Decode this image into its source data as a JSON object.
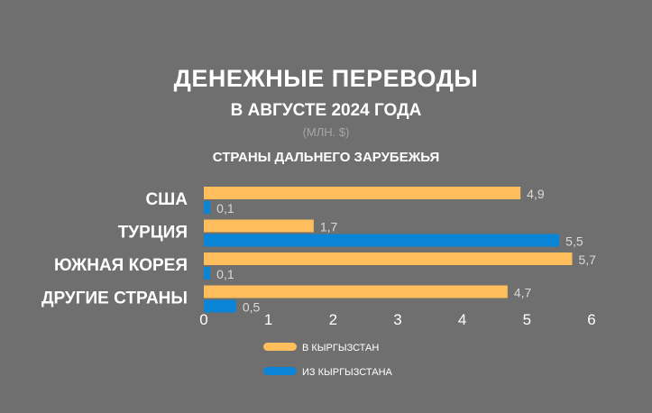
{
  "header": {
    "title": "ДЕНЕЖНЫЕ ПЕРЕВОДЫ",
    "subtitle": "В АВГУСТЕ 2024 ГОДА",
    "unit": "(МЛН. $)",
    "group": "СТРАНЫ ДАЛЬНЕГО ЗАРУБЕЖЬЯ"
  },
  "chart_data": {
    "type": "bar",
    "orientation": "horizontal",
    "categories": [
      "США",
      "ТУРЦИЯ",
      "ЮЖНАЯ КОРЕЯ",
      "ДРУГИЕ СТРАНЫ"
    ],
    "series": [
      {
        "name": "В КЫРГЫЗСТАН",
        "color": "#ffbe5c",
        "values": [
          4.9,
          1.7,
          5.7,
          4.7
        ],
        "labels": [
          "4,9",
          "1,7",
          "5,7",
          "4,7"
        ]
      },
      {
        "name": "ИЗ КЫРГЫЗСТАНА",
        "color": "#0a84d6",
        "values": [
          0.1,
          5.5,
          0.1,
          0.5
        ],
        "labels": [
          "0,1",
          "5,5",
          "0,1",
          "0,5"
        ]
      }
    ],
    "xlim": [
      0,
      6
    ],
    "xticks": [
      0,
      1,
      2,
      3,
      4,
      5,
      6
    ],
    "grid": false,
    "legend": "bottom-center"
  }
}
